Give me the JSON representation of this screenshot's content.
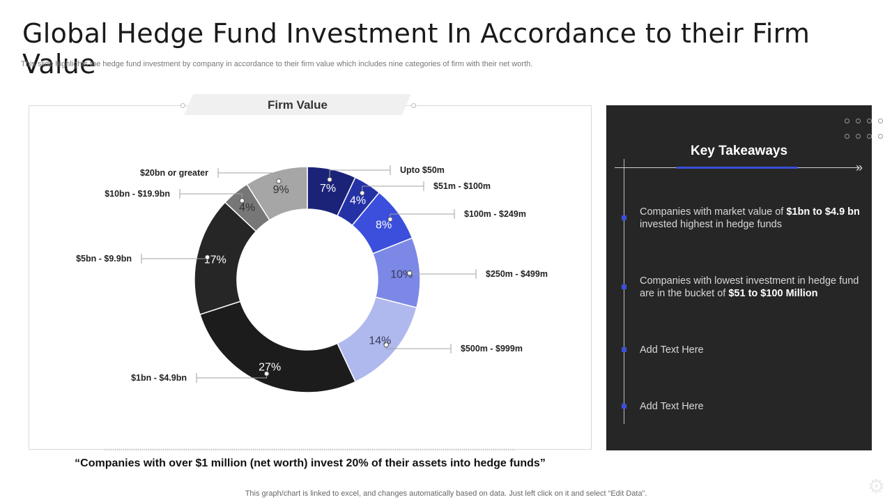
{
  "title": "Global Hedge Fund Investment In Accordance  to their Firm Value",
  "subtitle": "This slide highlights the hedge fund investment by company in accordance to their firm value which includes nine categories of firm with their net worth.",
  "chart_data": {
    "type": "pie",
    "donut": true,
    "title": "Firm Value",
    "categories": [
      "Upto $50m",
      "$51m - $100m",
      "$100m - $249m",
      "$250m - $499m",
      "$500m - $999m",
      "$1bn - $4.9bn",
      "$5bn - $9.9bn",
      "$10bn - $19.9bn",
      "$20bn or greater"
    ],
    "values": [
      7,
      4,
      8,
      10,
      14,
      27,
      17,
      4,
      9
    ],
    "value_labels": [
      "7%",
      "4%",
      "8%",
      "10%",
      "14%",
      "27%",
      "17%",
      "4%",
      "9%"
    ],
    "colors": [
      "#1b2378",
      "#2532a6",
      "#3b4fdc",
      "#7b88e6",
      "#b0b9ee",
      "#1c1c1c",
      "#262626",
      "#777777",
      "#a6a6a6"
    ]
  },
  "quote": "“Companies with over $1 million (net worth)  invest 20% of their assets  into hedge funds”",
  "footer": "This graph/chart is linked to excel,  and changes automatically based on data. Just left click on it and select “Edit Data”.",
  "takeaways": {
    "title": "Key Takeaways",
    "items": [
      {
        "pre": "Companies with market value of ",
        "bold": "$1bn to $4.9 bn",
        "post": " invested highest in hedge funds"
      },
      {
        "pre": "Companies with lowest investment in hedge fund are in the bucket of ",
        "bold": "$51 to $100 Million",
        "post": ""
      },
      {
        "pre": "Add Text Here",
        "bold": "",
        "post": ""
      },
      {
        "pre": "Add Text Here",
        "bold": "",
        "post": ""
      }
    ]
  },
  "icons": {
    "arrow": "double-chevron-right-icon",
    "gear": "gear-icon"
  },
  "accent_color": "#3a50d6"
}
